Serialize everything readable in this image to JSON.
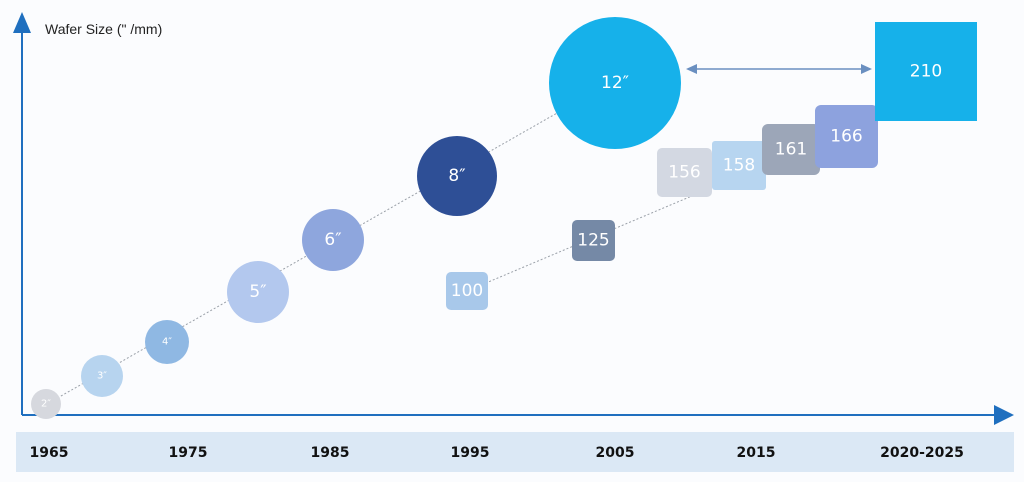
{
  "chart_data": {
    "type": "scatter",
    "ylabel": "Wafer Size (\" /mm)",
    "categories": [
      "1965",
      "1975",
      "1985",
      "1995",
      "2005",
      "2015",
      "2020-2025"
    ],
    "series": [
      {
        "marker": "circle",
        "points": [
          {
            "x": 1965,
            "size_in": 2,
            "label": "2″"
          },
          {
            "x": 1969,
            "size_in": 3,
            "label": "3″"
          },
          {
            "x": 1974,
            "size_in": 4,
            "label": "4″"
          },
          {
            "x": 1980,
            "size_in": 5,
            "label": "5″"
          },
          {
            "x": 1985,
            "size_in": 6,
            "label": "6″"
          },
          {
            "x": 1995,
            "size_in": 8,
            "label": "8″"
          },
          {
            "x": 2006,
            "size_in": 12,
            "label": "12″"
          }
        ]
      },
      {
        "marker": "square",
        "points": [
          {
            "x": 1996,
            "size_mm": 100,
            "label": "100"
          },
          {
            "x": 2004,
            "size_mm": 125,
            "label": "125"
          },
          {
            "x": 2010,
            "size_mm": 156,
            "label": "156"
          },
          {
            "x": 2014,
            "size_mm": 158,
            "label": "158"
          },
          {
            "x": 2018,
            "size_mm": 161,
            "label": "161"
          },
          {
            "x": 2022,
            "size_mm": 166,
            "label": "166"
          },
          {
            "x": 2025,
            "size_mm": 210,
            "label": "210"
          }
        ]
      }
    ],
    "annotations": [
      {
        "type": "double-arrow",
        "from": "12″",
        "to": "210"
      }
    ]
  },
  "colors": {
    "axis": "#1f6fbf",
    "timeline_band": "#dbe8f5",
    "circles": [
      "#d6d8de",
      "#b7d4ef",
      "#8fb8e3",
      "#b3c8ee",
      "#8ea6dd",
      "#2e4f96",
      "#16b1ea"
    ],
    "squares": [
      "#a8c8ea",
      "#7589a6",
      "#d3d8e2",
      "#b7d5f0",
      "#9ca6b8",
      "#8da2de",
      "#16b1ea"
    ]
  }
}
